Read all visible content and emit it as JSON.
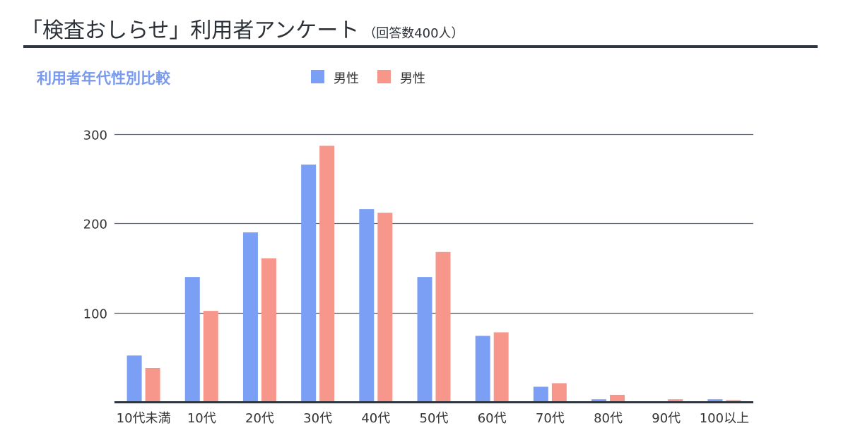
{
  "header": {
    "title": "「検査おしらせ」利用者アンケート",
    "subtitle": "（回答数400人）"
  },
  "chart_data": {
    "type": "bar",
    "title": "利用者年代性別比較",
    "xlabel": "",
    "ylabel": "",
    "categories": [
      "10代未満",
      "10代",
      "20代",
      "30代",
      "40代",
      "50代",
      "60代",
      "70代",
      "80代",
      "90代",
      "100以上"
    ],
    "series": [
      {
        "name": "男性",
        "color": "#7b9ff5",
        "values": [
          52,
          140,
          190,
          266,
          216,
          140,
          74,
          17,
          3,
          0,
          3
        ]
      },
      {
        "name": "男性",
        "color": "#f7968a",
        "values": [
          38,
          102,
          161,
          287,
          212,
          168,
          78,
          21,
          8,
          3,
          2
        ]
      }
    ],
    "yticks": [
      100,
      200,
      300
    ],
    "ylim": [
      0,
      300
    ],
    "grid": true,
    "legend_position": "top"
  }
}
